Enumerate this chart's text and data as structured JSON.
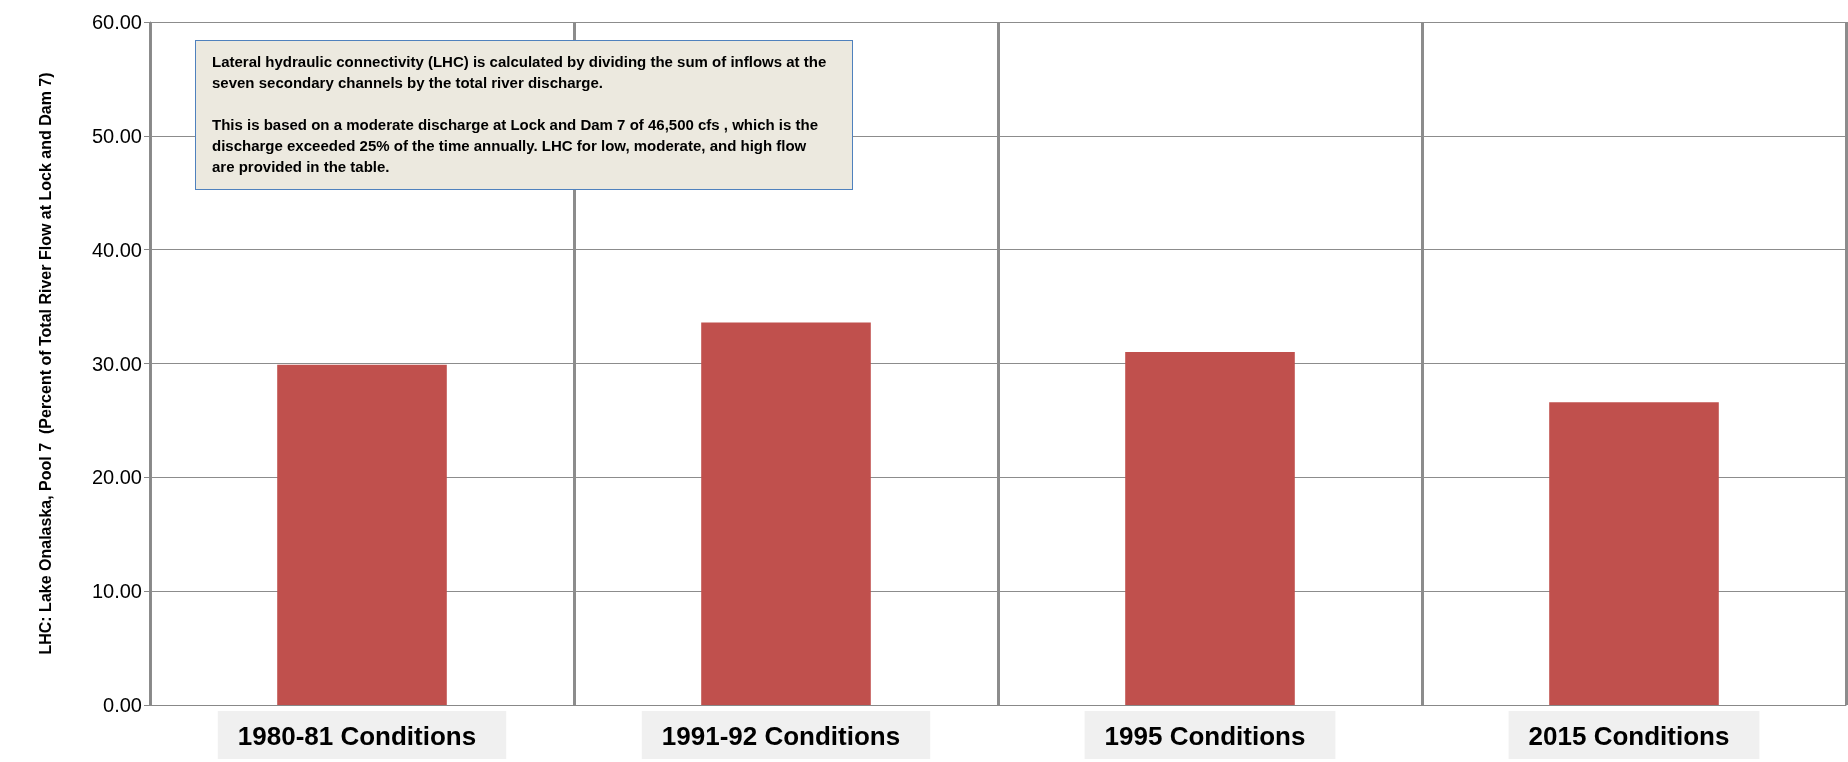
{
  "chart_data": {
    "type": "bar",
    "ylabel": "LHC: Lake Onalaska, Pool 7  (Percent of Total River Flow at Lock and Dam 7)",
    "categories": [
      "1980-81 Conditions",
      "1991-92 Conditions",
      "1995 Conditions",
      "2015 Conditions"
    ],
    "values": [
      29.9,
      33.6,
      31.0,
      26.6
    ],
    "color": "#c0504d",
    "ylim": [
      0,
      60
    ],
    "yticks": [
      {
        "value": 0,
        "label": "0.00"
      },
      {
        "value": 10,
        "label": "10.00"
      },
      {
        "value": 20,
        "label": "20.00"
      },
      {
        "value": 30,
        "label": "30.00"
      },
      {
        "value": 40,
        "label": "40.00"
      },
      {
        "value": 50,
        "label": "50.00"
      },
      {
        "value": 60,
        "label": "60.00"
      }
    ],
    "grid": true,
    "annotations": [
      "Lateral hydraulic connectivity (LHC) is calculated by dividing the sum of inflows at the seven secondary channels by the total river discharge.",
      "This is based on a moderate discharge at Lock and Dam 7 of 46,500 cfs , which is the discharge exceeded 25% of the time annually. LHC for low, moderate, and high flow are provided in the table."
    ]
  }
}
